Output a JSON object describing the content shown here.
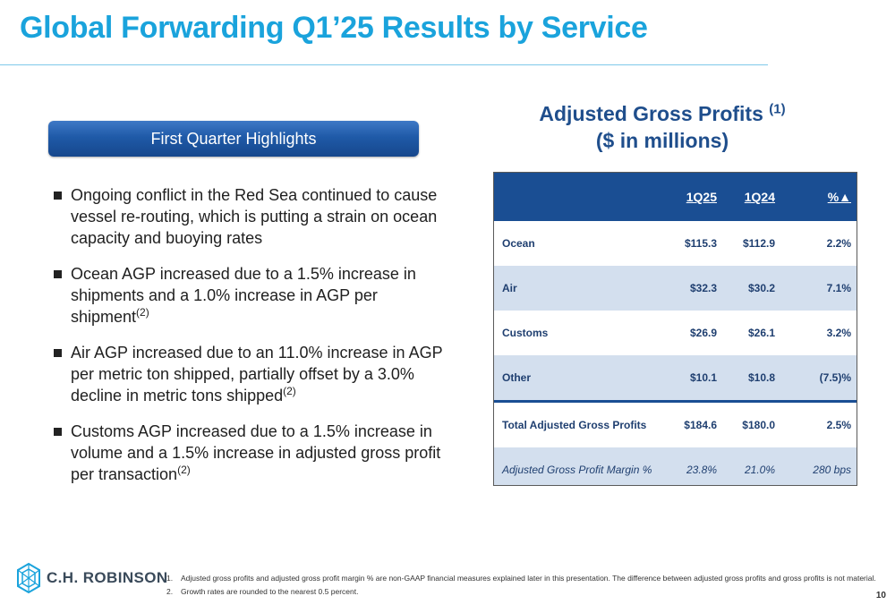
{
  "title": "Global Forwarding Q1’25 Results by Service",
  "highlights": {
    "label": "First Quarter Highlights",
    "bullets": [
      {
        "text": "Ongoing conflict in the Red Sea continued to cause vessel re-routing, which is putting a strain on ocean capacity and buoying rates",
        "ref": ""
      },
      {
        "text": "Ocean AGP increased due to a 1.5% increase in shipments and a 1.0% increase in AGP per shipment",
        "ref": "(2)"
      },
      {
        "text": "Air AGP increased due to an 11.0% increase in AGP per metric ton shipped, partially offset by a 3.0% decline in metric tons shipped",
        "ref": "(2)"
      },
      {
        "text": "Customs AGP increased due to a 1.5% increase in volume and a 1.5% increase in adjusted gross profit per transaction",
        "ref": "(2)"
      }
    ]
  },
  "agp": {
    "heading_line1": "Adjusted Gross Profits",
    "heading_ref": "(1)",
    "heading_line2": "($ in millions)",
    "columns": [
      "",
      "1Q25",
      "1Q24",
      "%▲"
    ],
    "rows": [
      {
        "label": "Ocean",
        "q125": "$115.3",
        "q124": "$112.9",
        "pct": "2.2%"
      },
      {
        "label": "Air",
        "q125": "$32.3",
        "q124": "$30.2",
        "pct": "7.1%"
      },
      {
        "label": "Customs",
        "q125": "$26.9",
        "q124": "$26.1",
        "pct": "3.2%"
      },
      {
        "label": "Other",
        "q125": "$10.1",
        "q124": "$10.8",
        "pct": "(7.5)%"
      },
      {
        "label": "Total Adjusted Gross Profits",
        "q125": "$184.6",
        "q124": "$180.0",
        "pct": "2.5%"
      },
      {
        "label": "Adjusted Gross Profit Margin %",
        "q125": "23.8%",
        "q124": "21.0%",
        "pct": "280 bps"
      }
    ]
  },
  "logo": {
    "text": "C.H. ROBINSON",
    "icon": "ch-robinson-logo-icon",
    "color": "#1aa3dc"
  },
  "footnotes": [
    {
      "num": "1.",
      "text": "Adjusted gross profits and adjusted gross profit margin % are non-GAAP financial measures explained later in this presentation. The difference between adjusted gross profits and gross profits is not material."
    },
    {
      "num": "2.",
      "text": "Growth rates are rounded to the nearest 0.5 percent."
    }
  ],
  "page_number": "10"
}
